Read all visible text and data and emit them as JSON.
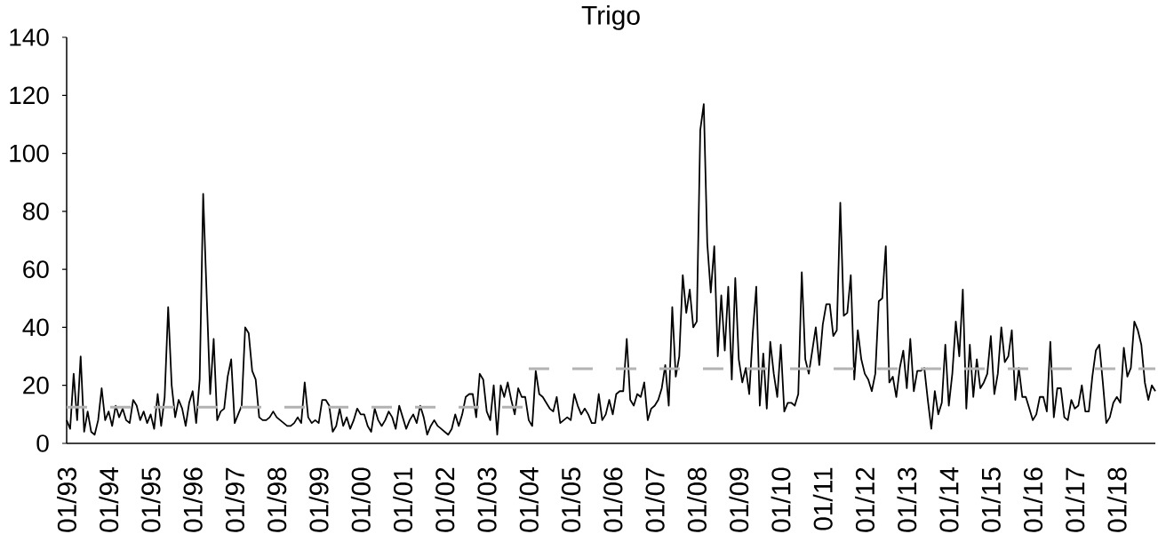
{
  "chart_data": {
    "type": "line",
    "title": "Trigo",
    "x": [
      "1993-01",
      "1993-02",
      "1993-03",
      "1993-04",
      "1993-05",
      "1993-06",
      "1993-07",
      "1993-08",
      "1993-09",
      "1993-10",
      "1993-11",
      "1993-12",
      "1994-01",
      "1994-02",
      "1994-03",
      "1994-04",
      "1994-05",
      "1994-06",
      "1994-07",
      "1994-08",
      "1994-09",
      "1994-10",
      "1994-11",
      "1994-12",
      "1995-01",
      "1995-02",
      "1995-03",
      "1995-04",
      "1995-05",
      "1995-06",
      "1995-07",
      "1995-08",
      "1995-09",
      "1995-10",
      "1995-11",
      "1995-12",
      "1996-01",
      "1996-02",
      "1996-03",
      "1996-04",
      "1996-05",
      "1996-06",
      "1996-07",
      "1996-08",
      "1996-09",
      "1996-10",
      "1996-11",
      "1996-12",
      "1997-01",
      "1997-02",
      "1997-03",
      "1997-04",
      "1997-05",
      "1997-06",
      "1997-07",
      "1997-08",
      "1997-09",
      "1997-10",
      "1997-11",
      "1997-12",
      "1998-01",
      "1998-02",
      "1998-03",
      "1998-04",
      "1998-05",
      "1998-06",
      "1998-07",
      "1998-08",
      "1998-09",
      "1998-10",
      "1998-11",
      "1998-12",
      "1999-01",
      "1999-02",
      "1999-03",
      "1999-04",
      "1999-05",
      "1999-06",
      "1999-07",
      "1999-08",
      "1999-09",
      "1999-10",
      "1999-11",
      "1999-12",
      "2000-01",
      "2000-02",
      "2000-03",
      "2000-04",
      "2000-05",
      "2000-06",
      "2000-07",
      "2000-08",
      "2000-09",
      "2000-10",
      "2000-11",
      "2000-12",
      "2001-01",
      "2001-02",
      "2001-03",
      "2001-04",
      "2001-05",
      "2001-06",
      "2001-07",
      "2001-08",
      "2001-09",
      "2001-10",
      "2001-11",
      "2001-12",
      "2002-01",
      "2002-02",
      "2002-03",
      "2002-04",
      "2002-05",
      "2002-06",
      "2002-07",
      "2002-08",
      "2002-09",
      "2002-10",
      "2002-11",
      "2002-12",
      "2003-01",
      "2003-02",
      "2003-03",
      "2003-04",
      "2003-05",
      "2003-06",
      "2003-07",
      "2003-08",
      "2003-09",
      "2003-10",
      "2003-11",
      "2003-12",
      "2004-01",
      "2004-02",
      "2004-03",
      "2004-04",
      "2004-05",
      "2004-06",
      "2004-07",
      "2004-08",
      "2004-09",
      "2004-10",
      "2004-11",
      "2004-12",
      "2005-01",
      "2005-02",
      "2005-03",
      "2005-04",
      "2005-05",
      "2005-06",
      "2005-07",
      "2005-08",
      "2005-09",
      "2005-10",
      "2005-11",
      "2005-12",
      "2006-01",
      "2006-02",
      "2006-03",
      "2006-04",
      "2006-05",
      "2006-06",
      "2006-07",
      "2006-08",
      "2006-09",
      "2006-10",
      "2006-11",
      "2006-12",
      "2007-01",
      "2007-02",
      "2007-03",
      "2007-04",
      "2007-05",
      "2007-06",
      "2007-07",
      "2007-08",
      "2007-09",
      "2007-10",
      "2007-11",
      "2007-12",
      "2008-01",
      "2008-02",
      "2008-03",
      "2008-04",
      "2008-05",
      "2008-06",
      "2008-07",
      "2008-08",
      "2008-09",
      "2008-10",
      "2008-11",
      "2008-12",
      "2009-01",
      "2009-02",
      "2009-03",
      "2009-04",
      "2009-05",
      "2009-06",
      "2009-07",
      "2009-08",
      "2009-09",
      "2009-10",
      "2009-11",
      "2009-12",
      "2010-01",
      "2010-02",
      "2010-03",
      "2010-04",
      "2010-05",
      "2010-06",
      "2010-07",
      "2010-08",
      "2010-09",
      "2010-10",
      "2010-11",
      "2010-12",
      "2011-01",
      "2011-02",
      "2011-03",
      "2011-04",
      "2011-05",
      "2011-06",
      "2011-07",
      "2011-08",
      "2011-09",
      "2011-10",
      "2011-11",
      "2011-12",
      "2012-01",
      "2012-02",
      "2012-03",
      "2012-04",
      "2012-05",
      "2012-06",
      "2012-07",
      "2012-08",
      "2012-09",
      "2012-10",
      "2012-11",
      "2012-12",
      "2013-01",
      "2013-02",
      "2013-03",
      "2013-04",
      "2013-05",
      "2013-06",
      "2013-07",
      "2013-08",
      "2013-09",
      "2013-10",
      "2013-11",
      "2013-12",
      "2014-01",
      "2014-02",
      "2014-03",
      "2014-04",
      "2014-05",
      "2014-06",
      "2014-07",
      "2014-08",
      "2014-09",
      "2014-10",
      "2014-11",
      "2014-12",
      "2015-01",
      "2015-02",
      "2015-03",
      "2015-04",
      "2015-05",
      "2015-06",
      "2015-07",
      "2015-08",
      "2015-09",
      "2015-10",
      "2015-11",
      "2015-12",
      "2016-01",
      "2016-02",
      "2016-03",
      "2016-04",
      "2016-05",
      "2016-06",
      "2016-07",
      "2016-08",
      "2016-09",
      "2016-10",
      "2016-11",
      "2016-12",
      "2017-01",
      "2017-02",
      "2017-03",
      "2017-04",
      "2017-05",
      "2017-06",
      "2017-07",
      "2017-08",
      "2017-09",
      "2017-10",
      "2017-11",
      "2017-12",
      "2018-01",
      "2018-02",
      "2018-03",
      "2018-04",
      "2018-05",
      "2018-06",
      "2018-07",
      "2018-08",
      "2018-09",
      "2018-10",
      "2018-11",
      "2018-12"
    ],
    "series": [
      {
        "color": "#000000",
        "values": [
          8,
          5,
          24,
          8,
          30,
          4,
          11,
          4,
          3,
          8,
          19,
          8,
          11,
          6,
          13,
          9,
          12,
          8,
          7,
          15,
          13,
          8,
          11,
          7,
          10,
          5,
          17,
          6,
          16,
          47,
          20,
          9,
          15,
          12,
          6,
          14,
          18,
          7,
          22,
          86,
          51,
          17,
          36,
          8,
          11,
          12,
          23,
          29,
          7,
          10,
          13,
          40,
          38,
          25,
          22,
          9,
          8,
          8,
          9,
          11,
          9,
          8,
          7,
          6,
          6,
          7,
          9,
          7,
          21,
          9,
          7,
          8,
          7,
          15,
          15,
          13,
          4,
          6,
          12,
          6,
          9,
          5,
          8,
          12,
          10,
          10,
          6,
          4,
          12,
          8,
          6,
          8,
          11,
          9,
          5,
          13,
          9,
          5,
          8,
          10,
          7,
          13,
          9,
          3,
          6,
          8,
          6,
          5,
          4,
          3,
          5,
          10,
          6,
          10,
          16,
          17,
          17,
          9,
          24,
          22,
          11,
          8,
          20,
          3,
          20,
          16,
          21,
          15,
          10,
          19,
          16,
          16,
          8,
          6,
          25,
          17,
          16,
          14,
          12,
          11,
          16,
          7,
          8,
          9,
          8,
          17,
          13,
          10,
          12,
          10,
          7,
          7,
          17,
          8,
          10,
          15,
          10,
          17,
          18,
          18,
          36,
          15,
          13,
          17,
          16,
          21,
          8,
          12,
          13,
          15,
          19,
          27,
          13,
          47,
          23,
          30,
          58,
          45,
          53,
          40,
          42,
          108,
          117,
          69,
          52,
          68,
          30,
          51,
          32,
          54,
          22,
          57,
          29,
          21,
          26,
          17,
          38,
          54,
          13,
          31,
          12,
          35,
          24,
          16,
          34,
          11,
          14,
          14,
          13,
          17,
          59,
          29,
          24,
          32,
          40,
          27,
          41,
          48,
          48,
          37,
          39,
          83,
          44,
          45,
          58,
          22,
          39,
          29,
          24,
          22,
          18,
          24,
          49,
          50,
          68,
          21,
          23,
          16,
          26,
          32,
          19,
          36,
          18,
          25,
          25,
          26,
          15,
          5,
          18,
          10,
          14,
          34,
          13,
          24,
          42,
          30,
          53,
          12,
          34,
          16,
          29,
          19,
          21,
          24,
          37,
          17,
          24,
          40,
          28,
          30,
          39,
          15,
          26,
          16,
          16,
          12,
          8,
          10,
          16,
          16,
          11,
          35,
          9,
          19,
          19,
          9,
          8,
          15,
          12,
          13,
          20,
          11,
          11,
          23,
          32,
          34,
          21,
          7,
          9,
          14,
          16,
          14,
          33,
          23,
          26,
          42,
          39,
          34,
          21,
          15,
          20,
          18
        ]
      },
      {
        "type": "line",
        "color": "#b2b2b2",
        "line_style": "dashed",
        "x": [
          "1993-01",
          "2003-12"
        ],
        "values": [
          12.5,
          12.5
        ]
      },
      {
        "type": "line",
        "color": "#b3b3b3",
        "line_style": "dashed",
        "x": [
          "2004-01",
          "2018-12"
        ],
        "values": [
          25.7,
          25.7
        ]
      }
    ],
    "xlim": [
      "1993-01",
      "2018-12"
    ],
    "xticks": [
      {
        "value": "1993-01",
        "label": "01/93"
      },
      {
        "value": "1994-01",
        "label": "01/94"
      },
      {
        "value": "1995-01",
        "label": "01/95"
      },
      {
        "value": "1996-01",
        "label": "01/96"
      },
      {
        "value": "1997-01",
        "label": "01/97"
      },
      {
        "value": "1998-01",
        "label": "01/98"
      },
      {
        "value": "1999-01",
        "label": "01/99"
      },
      {
        "value": "2000-01",
        "label": "01/00"
      },
      {
        "value": "2001-01",
        "label": "01/01"
      },
      {
        "value": "2002-01",
        "label": "01/02"
      },
      {
        "value": "2003-01",
        "label": "01/03"
      },
      {
        "value": "2004-01",
        "label": "01/04"
      },
      {
        "value": "2005-01",
        "label": "01/05"
      },
      {
        "value": "2006-01",
        "label": "01/06"
      },
      {
        "value": "2007-01",
        "label": "01/07"
      },
      {
        "value": "2008-01",
        "label": "01/08"
      },
      {
        "value": "2009-01",
        "label": "01/09"
      },
      {
        "value": "2010-01",
        "label": "01/10"
      },
      {
        "value": "2011-01",
        "label": "01/11"
      },
      {
        "value": "2012-01",
        "label": "01/12"
      },
      {
        "value": "2013-01",
        "label": "01/13"
      },
      {
        "value": "2014-01",
        "label": "01/14"
      },
      {
        "value": "2015-01",
        "label": "01/15"
      },
      {
        "value": "2016-01",
        "label": "01/16"
      },
      {
        "value": "2017-01",
        "label": "01/17"
      },
      {
        "value": "2018-01",
        "label": "01/18"
      }
    ],
    "ylim": [
      0,
      140
    ],
    "yticks": [
      0,
      20,
      40,
      60,
      80,
      100,
      120,
      140
    ]
  }
}
